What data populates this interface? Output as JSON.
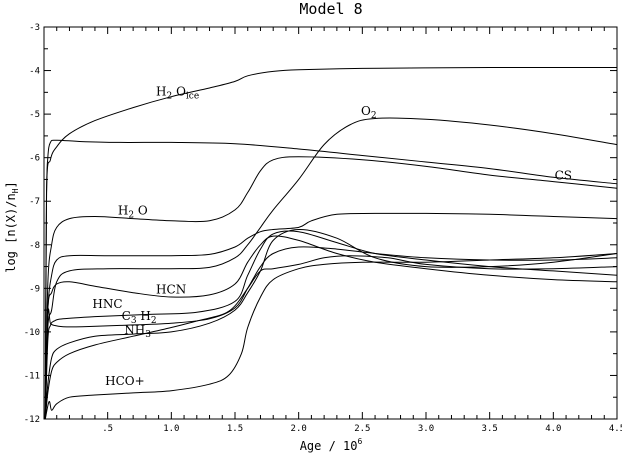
{
  "chart_data": {
    "type": "line",
    "title": "Model 8",
    "xlabel": "Age / 10",
    "xlabel_exp": "6",
    "ylabel": "log [n(X)/n",
    "ylabel_sub": "H",
    "ylabel_end": "]",
    "xlim": [
      0,
      4.5
    ],
    "ylim": [
      -12,
      -3
    ],
    "x_ticks": [
      {
        "v": 0.5,
        "label": ".5"
      },
      {
        "v": 1.0,
        "label": "1.0"
      },
      {
        "v": 1.5,
        "label": "1.5"
      },
      {
        "v": 2.0,
        "label": "2.0"
      },
      {
        "v": 2.5,
        "label": "2.5"
      },
      {
        "v": 3.0,
        "label": "3.0"
      },
      {
        "v": 3.5,
        "label": "3.5"
      },
      {
        "v": 4.0,
        "label": "4.0"
      },
      {
        "v": 4.5,
        "label": "4.5"
      }
    ],
    "y_ticks": [
      {
        "v": -3,
        "label": "-3"
      },
      {
        "v": -4,
        "label": "-4"
      },
      {
        "v": -5,
        "label": "-5"
      },
      {
        "v": -6,
        "label": "-6"
      },
      {
        "v": -7,
        "label": "-7"
      },
      {
        "v": -8,
        "label": "-8"
      },
      {
        "v": -9,
        "label": "-9"
      },
      {
        "v": -10,
        "label": "-10"
      },
      {
        "v": -11,
        "label": "-11"
      },
      {
        "v": -12,
        "label": "-12"
      }
    ],
    "series": [
      {
        "name": "H2Oice",
        "x": [
          0.01,
          0.02,
          0.05,
          0.1,
          0.2,
          0.4,
          0.7,
          1.0,
          1.3,
          1.5,
          1.6,
          1.8,
          2.0,
          2.5,
          3.0,
          3.5,
          4.0,
          4.5
        ],
        "y": [
          -12,
          -6.8,
          -6.05,
          -5.75,
          -5.45,
          -5.15,
          -4.85,
          -4.6,
          -4.4,
          -4.25,
          -4.12,
          -4.02,
          -3.98,
          -3.95,
          -3.94,
          -3.93,
          -3.93,
          -3.93
        ]
      },
      {
        "name": "CS",
        "x": [
          0.01,
          0.02,
          0.03,
          0.05,
          0.1,
          0.3,
          0.6,
          1.0,
          1.5,
          2.0,
          2.5,
          3.0,
          3.5,
          4.0,
          4.5
        ],
        "y": [
          -12,
          -7.0,
          -6.0,
          -5.65,
          -5.6,
          -5.63,
          -5.65,
          -5.65,
          -5.68,
          -5.8,
          -5.95,
          -6.1,
          -6.25,
          -6.45,
          -6.6
        ]
      },
      {
        "name": "O2",
        "x": [
          0.01,
          0.03,
          0.06,
          0.1,
          0.2,
          0.5,
          1.0,
          1.3,
          1.5,
          1.6,
          1.7,
          1.8,
          2.0,
          2.2,
          2.4,
          2.6,
          3.0,
          3.5,
          4.0,
          4.5
        ],
        "y": [
          -12,
          -9.9,
          -9.5,
          -8.85,
          -8.6,
          -8.55,
          -8.55,
          -8.52,
          -8.3,
          -8.0,
          -7.6,
          -7.2,
          -6.5,
          -5.7,
          -5.25,
          -5.1,
          -5.12,
          -5.25,
          -5.45,
          -5.7
        ]
      },
      {
        "name": "H2O",
        "x": [
          0.01,
          0.03,
          0.06,
          0.1,
          0.2,
          0.4,
          0.7,
          1.0,
          1.3,
          1.5,
          1.6,
          1.7,
          1.8,
          2.0,
          2.5,
          3.0,
          3.5,
          4.0,
          4.5
        ],
        "y": [
          -12,
          -8.9,
          -8.0,
          -7.6,
          -7.4,
          -7.35,
          -7.4,
          -7.45,
          -7.45,
          -7.2,
          -6.8,
          -6.3,
          -6.05,
          -5.98,
          -6.05,
          -6.2,
          -6.4,
          -6.55,
          -6.7
        ]
      },
      {
        "name": "",
        "x": [
          0.01,
          0.03,
          0.06,
          0.1,
          0.2,
          0.5,
          1.0,
          1.3,
          1.5,
          1.6,
          1.7,
          1.8,
          2.0,
          2.1,
          2.3,
          2.6,
          3.0,
          3.5,
          4.0,
          4.5
        ],
        "y": [
          -12,
          -9.5,
          -8.7,
          -8.35,
          -8.25,
          -8.25,
          -8.25,
          -8.22,
          -8.05,
          -7.85,
          -7.7,
          -7.65,
          -7.6,
          -7.45,
          -7.3,
          -7.28,
          -7.28,
          -7.3,
          -7.35,
          -7.4
        ]
      },
      {
        "name": "HCN",
        "x": [
          0.01,
          0.03,
          0.06,
          0.1,
          0.2,
          0.4,
          0.7,
          1.0,
          1.3,
          1.5,
          1.6,
          1.7,
          1.8,
          2.0,
          2.3,
          2.6,
          3.0,
          3.5,
          4.0,
          4.5
        ],
        "y": [
          -12,
          -9.5,
          -9.1,
          -8.9,
          -8.85,
          -8.95,
          -9.1,
          -9.2,
          -9.15,
          -8.9,
          -8.4,
          -8.0,
          -7.8,
          -7.9,
          -8.2,
          -8.4,
          -8.55,
          -8.7,
          -8.8,
          -8.85
        ]
      },
      {
        "name": "HNC",
        "x": [
          0.01,
          0.03,
          0.05,
          0.08,
          0.15,
          0.4,
          0.8,
          1.2,
          1.5,
          1.6,
          1.7,
          1.8,
          2.0,
          2.3,
          2.6,
          3.0,
          3.5,
          4.0,
          4.5
        ],
        "y": [
          -12,
          -10.2,
          -9.85,
          -9.75,
          -9.7,
          -9.65,
          -9.6,
          -9.55,
          -9.3,
          -8.7,
          -8.1,
          -7.75,
          -7.7,
          -7.95,
          -8.2,
          -8.35,
          -8.5,
          -8.6,
          -8.7
        ]
      },
      {
        "name": "C3H2",
        "x": [
          0.01,
          0.03,
          0.05,
          0.08,
          0.15,
          0.3,
          0.6,
          1.0,
          1.3,
          1.5,
          1.6,
          1.7,
          1.8,
          2.0,
          2.3,
          2.6,
          3.0,
          3.5,
          4.0,
          4.5
        ],
        "y": [
          -12,
          -9.6,
          -9.8,
          -9.85,
          -9.88,
          -9.88,
          -9.85,
          -9.8,
          -9.7,
          -9.45,
          -9.0,
          -8.5,
          -8.2,
          -8.05,
          -8.1,
          -8.2,
          -8.3,
          -8.35,
          -8.35,
          -8.3
        ]
      },
      {
        "name": "NH3",
        "x": [
          0.01,
          0.03,
          0.06,
          0.1,
          0.2,
          0.4,
          0.7,
          1.0,
          1.3,
          1.5,
          1.6,
          1.7,
          1.8,
          2.0,
          2.3,
          2.6,
          3.0,
          3.5,
          4.0,
          4.5
        ],
        "y": [
          -12,
          -11.2,
          -10.6,
          -10.4,
          -10.25,
          -10.1,
          -10.05,
          -10.0,
          -9.8,
          -9.5,
          -9.1,
          -8.6,
          -7.9,
          -7.65,
          -7.85,
          -8.3,
          -8.5,
          -8.5,
          -8.4,
          -8.2
        ]
      },
      {
        "name": "",
        "x": [
          0.01,
          0.03,
          0.06,
          0.1,
          0.2,
          0.4,
          0.7,
          1.0,
          1.2,
          1.4,
          1.5,
          1.6,
          1.7,
          1.8,
          2.0,
          2.2,
          2.4,
          2.7,
          3.0,
          3.5,
          4.0,
          4.5
        ],
        "y": [
          -12,
          -11.4,
          -10.9,
          -10.7,
          -10.5,
          -10.3,
          -10.1,
          -9.9,
          -9.75,
          -9.6,
          -9.4,
          -9.0,
          -8.6,
          -8.55,
          -8.45,
          -8.3,
          -8.25,
          -8.3,
          -8.45,
          -8.55,
          -8.55,
          -8.5
        ]
      },
      {
        "name": "HCO+",
        "x": [
          0.01,
          0.04,
          0.06,
          0.1,
          0.2,
          0.4,
          0.7,
          1.0,
          1.3,
          1.45,
          1.55,
          1.6,
          1.7,
          1.8,
          2.0,
          2.2,
          2.5,
          3.0,
          3.5,
          4.0,
          4.5
        ],
        "y": [
          -12,
          -11.6,
          -11.8,
          -11.65,
          -11.5,
          -11.45,
          -11.4,
          -11.35,
          -11.2,
          -11.0,
          -10.5,
          -9.9,
          -9.2,
          -8.8,
          -8.55,
          -8.45,
          -8.4,
          -8.4,
          -8.35,
          -8.3,
          -8.2
        ]
      }
    ],
    "annotations": [
      {
        "main": "H",
        "sub": "2",
        "rest": " O",
        "sub2": "ice",
        "x": 0.88,
        "y": -4.57
      },
      {
        "main": "O",
        "sub": "2",
        "rest": "",
        "sub2": "",
        "x": 2.49,
        "y": -5.02
      },
      {
        "main": "CS",
        "sub": "",
        "rest": "",
        "sub2": "",
        "x": 4.01,
        "y": -6.5
      },
      {
        "main": "H",
        "sub": "2",
        "rest": " O",
        "sub2": "",
        "x": 0.58,
        "y": -7.3
      },
      {
        "main": "HCN",
        "sub": "",
        "rest": "",
        "sub2": "",
        "x": 0.88,
        "y": -9.12
      },
      {
        "main": "HNC",
        "sub": "",
        "rest": "",
        "sub2": "",
        "x": 0.38,
        "y": -9.45
      },
      {
        "main": "C",
        "sub": "3",
        "rest": " H",
        "sub2": "2",
        "x": 0.61,
        "y": -9.73
      },
      {
        "main": "NH",
        "sub": "3",
        "rest": "",
        "sub2": "",
        "x": 0.63,
        "y": -10.05
      },
      {
        "main": "HCO+",
        "sub": "",
        "rest": "",
        "sub2": "",
        "x": 0.48,
        "y": -11.22
      }
    ]
  }
}
